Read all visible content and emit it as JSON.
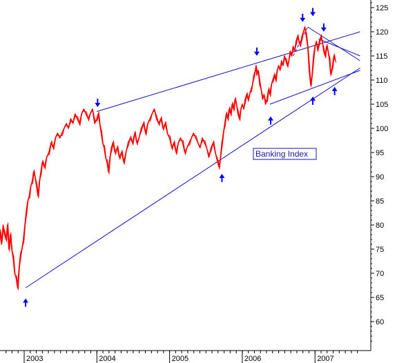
{
  "chart_data": {
    "type": "line",
    "title": "",
    "xlabel": "",
    "ylabel": "",
    "legend_label": "Banking Index",
    "legend_position": "center-right",
    "colors": {
      "price": "#ff0000",
      "trend": "#1010c0",
      "arrows": "#0000ff",
      "axis": "#000000"
    },
    "x_axis": {
      "range": [
        2002.5,
        2007.66
      ],
      "ticks": [
        2003,
        2004,
        2005,
        2006,
        2007
      ],
      "labels": [
        "2003",
        "2004",
        "2005",
        "2006",
        "2007"
      ]
    },
    "y_axis": {
      "range": [
        53,
        126
      ],
      "ticks": [
        60,
        65,
        70,
        75,
        80,
        85,
        90,
        95,
        100,
        105,
        110,
        115,
        120,
        125
      ],
      "labels": [
        "60",
        "65",
        "70",
        "75",
        "80",
        "85",
        "90",
        "95",
        "100",
        "105",
        "110",
        "115",
        "120",
        "125"
      ],
      "position": "right"
    },
    "grid": false,
    "series": [
      {
        "name": "Banking Index",
        "points": [
          [
            2002.5,
            80
          ],
          [
            2002.53,
            77
          ],
          [
            2002.55,
            74
          ],
          [
            2002.58,
            70
          ],
          [
            2002.6,
            65
          ],
          [
            2002.61,
            61
          ],
          [
            2002.62,
            66
          ],
          [
            2002.63,
            72
          ],
          [
            2002.65,
            75
          ],
          [
            2002.67,
            79
          ],
          [
            2002.69,
            76
          ],
          [
            2002.71,
            80
          ],
          [
            2002.73,
            78
          ],
          [
            2002.75,
            77
          ],
          [
            2002.77,
            80
          ],
          [
            2002.79,
            75
          ],
          [
            2002.81,
            78
          ],
          [
            2002.83,
            75
          ],
          [
            2002.85,
            73
          ],
          [
            2002.87,
            70
          ],
          [
            2002.89,
            69
          ],
          [
            2002.91,
            67
          ],
          [
            2002.93,
            71
          ],
          [
            2002.95,
            74
          ],
          [
            2002.97,
            75
          ],
          [
            2002.99,
            77
          ],
          [
            2003.01,
            80
          ],
          [
            2003.03,
            83
          ],
          [
            2003.05,
            85
          ],
          [
            2003.07,
            86
          ],
          [
            2003.09,
            88
          ],
          [
            2003.11,
            89
          ],
          [
            2003.13,
            91
          ],
          [
            2003.15,
            90
          ],
          [
            2003.17,
            88
          ],
          [
            2003.19,
            86
          ],
          [
            2003.21,
            89
          ],
          [
            2003.23,
            91
          ],
          [
            2003.25,
            93
          ],
          [
            2003.28,
            92
          ],
          [
            2003.31,
            94
          ],
          [
            2003.34,
            95
          ],
          [
            2003.37,
            97
          ],
          [
            2003.4,
            96
          ],
          [
            2003.43,
            98
          ],
          [
            2003.46,
            99
          ],
          [
            2003.49,
            98
          ],
          [
            2003.52,
            99
          ],
          [
            2003.55,
            100
          ],
          [
            2003.58,
            101
          ],
          [
            2003.61,
            100
          ],
          [
            2003.64,
            102
          ],
          [
            2003.67,
            101
          ],
          [
            2003.7,
            103
          ],
          [
            2003.73,
            102
          ],
          [
            2003.76,
            101
          ],
          [
            2003.79,
            103
          ],
          [
            2003.82,
            104
          ],
          [
            2003.85,
            103
          ],
          [
            2003.88,
            102
          ],
          [
            2003.91,
            103
          ],
          [
            2003.94,
            104
          ],
          [
            2003.97,
            101
          ],
          [
            2004.0,
            102
          ],
          [
            2004.02,
            103
          ],
          [
            2004.04,
            101
          ],
          [
            2004.06,
            99
          ],
          [
            2004.08,
            97
          ],
          [
            2004.1,
            96
          ],
          [
            2004.12,
            94
          ],
          [
            2004.14,
            93
          ],
          [
            2004.16,
            91
          ],
          [
            2004.18,
            94
          ],
          [
            2004.2,
            96
          ],
          [
            2004.22,
            97
          ],
          [
            2004.25,
            95
          ],
          [
            2004.28,
            96
          ],
          [
            2004.31,
            94
          ],
          [
            2004.34,
            95
          ],
          [
            2004.37,
            93
          ],
          [
            2004.4,
            95
          ],
          [
            2004.43,
            97
          ],
          [
            2004.46,
            98
          ],
          [
            2004.49,
            97
          ],
          [
            2004.52,
            99
          ],
          [
            2004.55,
            97
          ],
          [
            2004.58,
            98
          ],
          [
            2004.61,
            100
          ],
          [
            2004.64,
            101
          ],
          [
            2004.67,
            99
          ],
          [
            2004.7,
            101
          ],
          [
            2004.73,
            102
          ],
          [
            2004.76,
            103
          ],
          [
            2004.79,
            104
          ],
          [
            2004.82,
            102
          ],
          [
            2004.85,
            101
          ],
          [
            2004.88,
            102
          ],
          [
            2004.91,
            100
          ],
          [
            2004.94,
            101
          ],
          [
            2004.97,
            99
          ],
          [
            2005.0,
            98
          ],
          [
            2005.03,
            96
          ],
          [
            2005.06,
            97
          ],
          [
            2005.09,
            95
          ],
          [
            2005.12,
            97
          ],
          [
            2005.15,
            98
          ],
          [
            2005.18,
            97
          ],
          [
            2005.21,
            95
          ],
          [
            2005.24,
            96
          ],
          [
            2005.27,
            97
          ],
          [
            2005.3,
            98
          ],
          [
            2005.33,
            99
          ],
          [
            2005.36,
            98
          ],
          [
            2005.39,
            97
          ],
          [
            2005.42,
            96
          ],
          [
            2005.45,
            98
          ],
          [
            2005.48,
            97
          ],
          [
            2005.51,
            96
          ],
          [
            2005.54,
            94
          ],
          [
            2005.57,
            96
          ],
          [
            2005.6,
            97
          ],
          [
            2005.63,
            95
          ],
          [
            2005.66,
            93
          ],
          [
            2005.68,
            92
          ],
          [
            2005.7,
            94
          ],
          [
            2005.72,
            97
          ],
          [
            2005.74,
            99
          ],
          [
            2005.76,
            101
          ],
          [
            2005.78,
            103
          ],
          [
            2005.8,
            102
          ],
          [
            2005.82,
            104
          ],
          [
            2005.84,
            103
          ],
          [
            2005.86,
            105
          ],
          [
            2005.88,
            104
          ],
          [
            2005.9,
            106
          ],
          [
            2005.92,
            105
          ],
          [
            2005.94,
            103
          ],
          [
            2005.96,
            102
          ],
          [
            2005.98,
            104
          ],
          [
            2006.0,
            105
          ],
          [
            2006.02,
            104
          ],
          [
            2006.04,
            106
          ],
          [
            2006.06,
            107
          ],
          [
            2006.08,
            106
          ],
          [
            2006.1,
            107
          ],
          [
            2006.12,
            108
          ],
          [
            2006.14,
            109
          ],
          [
            2006.16,
            111
          ],
          [
            2006.18,
            112
          ],
          [
            2006.19,
            113
          ],
          [
            2006.2,
            111
          ],
          [
            2006.22,
            112
          ],
          [
            2006.24,
            109
          ],
          [
            2006.26,
            108
          ],
          [
            2006.28,
            106
          ],
          [
            2006.3,
            107
          ],
          [
            2006.32,
            105
          ],
          [
            2006.34,
            106
          ],
          [
            2006.36,
            108
          ],
          [
            2006.38,
            107
          ],
          [
            2006.4,
            109
          ],
          [
            2006.42,
            110
          ],
          [
            2006.44,
            111
          ],
          [
            2006.46,
            110
          ],
          [
            2006.48,
            112
          ],
          [
            2006.5,
            113
          ],
          [
            2006.52,
            112
          ],
          [
            2006.54,
            114
          ],
          [
            2006.56,
            113
          ],
          [
            2006.58,
            115
          ],
          [
            2006.6,
            114
          ],
          [
            2006.62,
            113
          ],
          [
            2006.64,
            114
          ],
          [
            2006.66,
            116
          ],
          [
            2006.68,
            115
          ],
          [
            2006.7,
            117
          ],
          [
            2006.72,
            116
          ],
          [
            2006.74,
            118
          ],
          [
            2006.76,
            119
          ],
          [
            2006.78,
            118
          ],
          [
            2006.8,
            117
          ],
          [
            2006.82,
            119
          ],
          [
            2006.84,
            120
          ],
          [
            2006.86,
            121
          ],
          [
            2006.88,
            119
          ],
          [
            2006.9,
            117
          ],
          [
            2006.92,
            112
          ],
          [
            2006.94,
            109
          ],
          [
            2006.96,
            111
          ],
          [
            2006.98,
            115
          ],
          [
            2007.0,
            117
          ],
          [
            2007.02,
            118
          ],
          [
            2007.04,
            116
          ],
          [
            2007.06,
            118
          ],
          [
            2007.08,
            119
          ],
          [
            2007.1,
            118
          ],
          [
            2007.12,
            116
          ],
          [
            2007.14,
            115
          ],
          [
            2007.16,
            117
          ],
          [
            2007.18,
            116
          ],
          [
            2007.2,
            114
          ],
          [
            2007.21,
            112
          ],
          [
            2007.22,
            111
          ],
          [
            2007.24,
            113
          ],
          [
            2007.26,
            115
          ],
          [
            2007.28,
            114
          ]
        ]
      }
    ],
    "trendlines": [
      {
        "from": [
          2003.02,
          67
        ],
        "to": [
          2007.62,
          112.5
        ]
      },
      {
        "from": [
          2004.0,
          103.5
        ],
        "to": [
          2007.62,
          120
        ]
      },
      {
        "from": [
          2006.38,
          105
        ],
        "to": [
          2007.62,
          112
        ]
      },
      {
        "from": [
          2006.7,
          115
        ],
        "to": [
          2006.9,
          121
        ]
      },
      {
        "from": [
          2006.9,
          121
        ],
        "to": [
          2007.62,
          114
        ]
      },
      {
        "from": [
          2007.05,
          118.5
        ],
        "to": [
          2007.62,
          115
        ]
      }
    ],
    "markers_down": [
      [
        2004.01,
        104.7
      ],
      [
        2006.2,
        115.3
      ],
      [
        2006.83,
        122.3
      ],
      [
        2006.97,
        123.5
      ],
      [
        2007.12,
        120.3
      ]
    ],
    "markers_up": [
      [
        2003.02,
        64.5
      ],
      [
        2005.72,
        90.3
      ],
      [
        2006.39,
        102.2
      ],
      [
        2006.97,
        106.3
      ],
      [
        2007.27,
        108.3
      ]
    ]
  }
}
